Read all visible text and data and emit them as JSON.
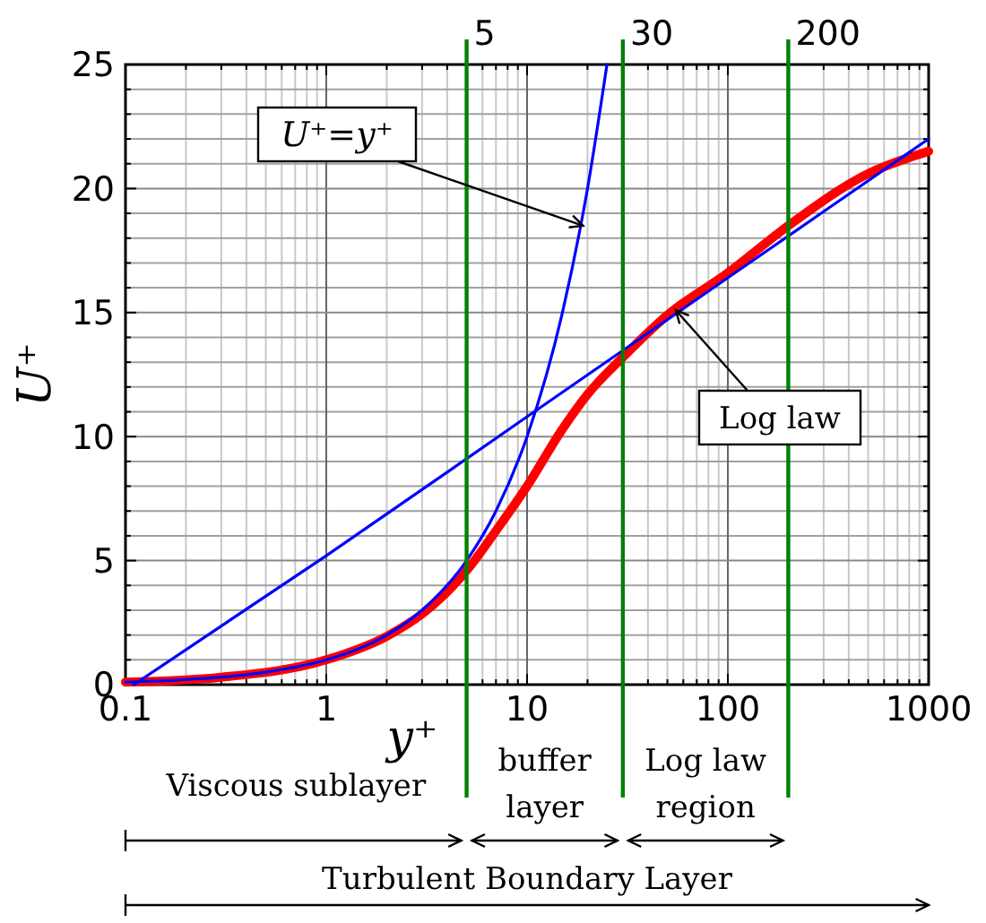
{
  "chart_data": {
    "type": "line",
    "xlabel": "y⁺",
    "ylabel": "U⁺",
    "log": "x",
    "xlim": [
      0.1,
      1000
    ],
    "xticks": [
      0.1,
      1,
      10,
      100,
      1000
    ],
    "ylim": [
      0,
      25
    ],
    "yticks": [
      0,
      5,
      10,
      15,
      20,
      25
    ],
    "grid": true,
    "series": [
      {
        "color": "#ff0000",
        "x": [
          0.1,
          0.3,
          1,
          2,
          3,
          5,
          7,
          10,
          15,
          20,
          30,
          50,
          100,
          200,
          500,
          1000
        ],
        "values": [
          0.1,
          0.3,
          1,
          1.95,
          2.85,
          4.6,
          6.2,
          8,
          10.3,
          11.7,
          13.2,
          14.9,
          16.6,
          18.5,
          20.6,
          21.5
        ]
      },
      {
        "color": "#0000ff",
        "x": [
          0.1,
          0.2,
          0.5,
          1,
          2,
          3,
          5,
          7,
          10,
          15,
          20,
          25
        ],
        "values": [
          0.1,
          0.2,
          0.5,
          1,
          2,
          3,
          5,
          7,
          10,
          15,
          20,
          25
        ]
      },
      {
        "color": "#0000ff",
        "x": [
          0.11,
          1,
          10,
          100,
          1000
        ],
        "values": [
          0,
          5.2,
          10.8,
          16.4,
          22
        ]
      }
    ],
    "ref_lines": [
      {
        "axis": "x",
        "value": 5,
        "label": "5",
        "color": "#008000"
      },
      {
        "axis": "x",
        "value": 30,
        "label": "30",
        "color": "#008000"
      },
      {
        "axis": "x",
        "value": 200,
        "label": "200",
        "color": "#008000"
      }
    ],
    "annotations": [
      {
        "text": "U⁺=y⁺",
        "x": 19,
        "y": 18.5
      },
      {
        "text": "Log law",
        "x": 55,
        "y": 15.1
      },
      "Viscous sublayer",
      "buffer layer",
      "Log law region",
      "Turbulent Boundary Layer"
    ]
  }
}
